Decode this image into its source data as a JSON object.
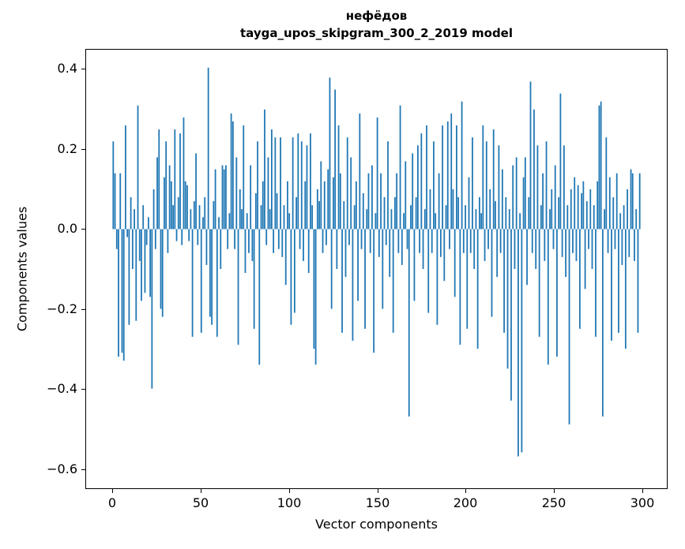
{
  "figure": {
    "background": "#ffffff"
  },
  "chart_data": {
    "type": "bar",
    "title": "нефёдов",
    "subtitle": "tayga_upos_skipgram_300_2_2019 model",
    "xlabel": "Vector components",
    "ylabel": "Components values",
    "bar_color": "#1f77b4",
    "spine_color": "#000000",
    "grid": false,
    "n_components": 300,
    "xlim": [
      -15.4,
      314.4
    ],
    "ylim": [
      -0.65,
      0.45
    ],
    "xticks": {
      "values": [
        0,
        50,
        100,
        150,
        200,
        250,
        300
      ],
      "labels": [
        "0",
        "50",
        "100",
        "150",
        "200",
        "250",
        "300"
      ]
    },
    "yticks": {
      "values": [
        -0.6,
        -0.4,
        -0.2,
        0.0,
        0.2,
        0.4
      ],
      "labels": [
        "−0.6",
        "−0.4",
        "−0.2",
        "0.0",
        "0.2",
        "0.4"
      ]
    },
    "values": [
      0.22,
      0.14,
      -0.05,
      -0.32,
      0.14,
      -0.31,
      -0.33,
      0.26,
      -0.02,
      -0.24,
      0.08,
      -0.1,
      0.05,
      -0.23,
      0.31,
      -0.08,
      -0.18,
      0.06,
      -0.16,
      -0.04,
      0.03,
      -0.17,
      -0.4,
      0.1,
      -0.05,
      0.18,
      0.25,
      -0.2,
      -0.22,
      0.13,
      0.22,
      -0.06,
      0.16,
      0.12,
      0.06,
      0.25,
      -0.03,
      0.08,
      0.24,
      -0.04,
      0.28,
      0.12,
      0.11,
      -0.03,
      0.05,
      -0.27,
      0.07,
      0.19,
      -0.04,
      0.06,
      -0.26,
      0.03,
      0.08,
      -0.09,
      0.405,
      -0.22,
      -0.24,
      0.07,
      0.15,
      -0.27,
      0.03,
      -0.1,
      0.16,
      0.15,
      0.16,
      -0.05,
      0.04,
      0.29,
      0.27,
      -0.05,
      0.18,
      -0.29,
      0.1,
      0.05,
      0.26,
      -0.11,
      0.04,
      -0.06,
      0.16,
      -0.08,
      -0.25,
      0.09,
      0.22,
      -0.34,
      0.06,
      0.12,
      0.3,
      -0.04,
      0.18,
      0.05,
      0.25,
      -0.06,
      0.23,
      0.09,
      -0.05,
      0.23,
      -0.07,
      0.06,
      -0.14,
      0.12,
      0.04,
      -0.24,
      0.23,
      -0.21,
      0.08,
      0.24,
      -0.05,
      0.22,
      -0.08,
      0.12,
      0.21,
      -0.11,
      0.24,
      0.06,
      -0.3,
      -0.34,
      0.1,
      0.07,
      0.17,
      -0.06,
      0.12,
      -0.04,
      0.15,
      0.38,
      -0.2,
      0.13,
      0.35,
      -0.1,
      0.26,
      0.14,
      -0.26,
      0.07,
      -0.12,
      0.23,
      -0.04,
      0.18,
      -0.28,
      0.06,
      0.12,
      -0.18,
      0.29,
      -0.05,
      0.09,
      -0.25,
      0.05,
      0.14,
      -0.06,
      0.16,
      -0.31,
      0.04,
      0.28,
      -0.07,
      0.14,
      -0.2,
      0.08,
      -0.04,
      0.22,
      -0.12,
      0.05,
      -0.26,
      0.08,
      0.14,
      -0.06,
      0.31,
      -0.09,
      0.04,
      0.17,
      -0.05,
      -0.47,
      0.06,
      0.19,
      -0.18,
      0.08,
      0.21,
      -0.06,
      0.24,
      -0.1,
      0.05,
      0.26,
      -0.21,
      0.1,
      -0.06,
      0.22,
      0.04,
      -0.24,
      0.14,
      -0.07,
      0.26,
      -0.13,
      0.06,
      0.27,
      -0.05,
      0.29,
      0.1,
      -0.17,
      0.26,
      0.08,
      -0.29,
      0.32,
      -0.06,
      0.06,
      -0.25,
      0.13,
      -0.06,
      0.23,
      -0.1,
      0.05,
      -0.3,
      0.08,
      0.04,
      0.26,
      -0.08,
      0.22,
      -0.05,
      0.1,
      -0.22,
      0.25,
      0.07,
      -0.12,
      0.21,
      -0.06,
      0.15,
      -0.26,
      0.08,
      -0.35,
      0.05,
      -0.43,
      0.16,
      -0.1,
      0.18,
      -0.57,
      0.04,
      -0.56,
      0.13,
      0.18,
      -0.14,
      0.08,
      0.37,
      -0.06,
      0.3,
      -0.1,
      0.21,
      -0.27,
      0.06,
      0.14,
      -0.08,
      0.22,
      -0.34,
      0.05,
      0.1,
      -0.05,
      0.16,
      -0.32,
      0.08,
      0.34,
      -0.07,
      0.21,
      -0.12,
      0.06,
      -0.49,
      0.1,
      -0.06,
      0.13,
      -0.08,
      0.11,
      -0.25,
      0.09,
      0.12,
      -0.15,
      0.07,
      -0.05,
      0.1,
      -0.1,
      0.06,
      -0.27,
      0.12,
      0.31,
      0.32,
      -0.47,
      0.05,
      0.23,
      -0.06,
      0.13,
      -0.28,
      0.08,
      -0.05,
      0.14,
      -0.26,
      0.04,
      -0.09,
      0.06,
      -0.3,
      0.1,
      -0.07,
      0.15,
      0.14,
      -0.08,
      0.05,
      -0.26,
      0.14
    ]
  }
}
